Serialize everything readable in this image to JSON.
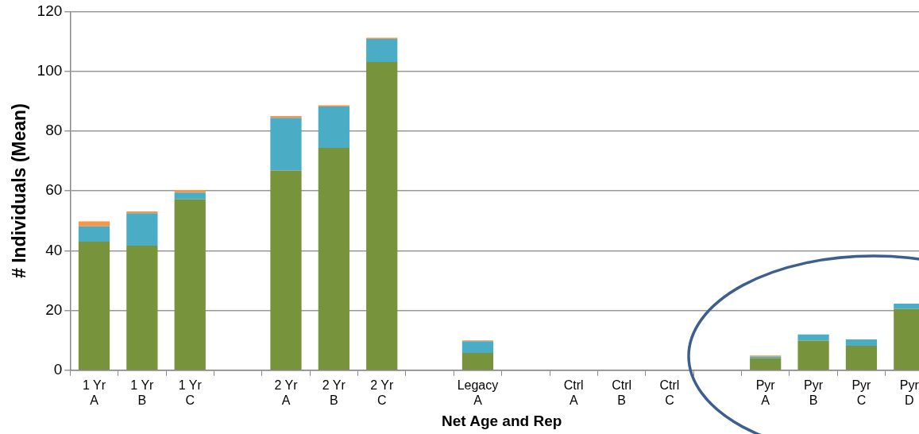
{
  "chart_data": {
    "type": "bar",
    "stacked": true,
    "xlabel": "Net Age and Rep",
    "ylabel": "# Individuals (Mean)",
    "categories": [
      "1 Yr\nA",
      "1 Yr\nB",
      "1 Yr\nC",
      null,
      "2 Yr\nA",
      "2 Yr\nB",
      "2 Yr\nC",
      null,
      "Legacy\nA",
      null,
      "Ctrl\nA",
      "Ctrl\nB",
      "Ctrl\nC",
      null,
      "Pyr\nA",
      "Pyr\nB",
      "Pyr\nC",
      "Pyr\nD"
    ],
    "series": [
      {
        "color": "#77933c",
        "values": [
          43.0,
          41.7,
          57.2,
          null,
          66.8,
          74.4,
          103.1,
          null,
          5.8,
          null,
          0,
          0,
          0,
          null,
          4.0,
          9.9,
          8.2,
          20.5
        ]
      },
      {
        "color": "#4bacc6",
        "values": [
          5.1,
          10.8,
          2.2,
          null,
          17.6,
          13.8,
          7.7,
          null,
          3.9,
          null,
          0,
          0,
          0,
          null,
          0.5,
          2.1,
          2.1,
          1.8
        ]
      },
      {
        "color": "#f79646",
        "values": [
          1.7,
          0.6,
          0.9,
          null,
          0.6,
          0.4,
          0.4,
          null,
          0.3,
          null,
          0,
          0,
          0,
          null,
          0.4,
          0,
          0,
          0
        ]
      }
    ],
    "ylim": [
      0,
      120
    ],
    "yticks": [
      0,
      20,
      40,
      60,
      80,
      100,
      120
    ],
    "grid": "y",
    "legend": false
  }
}
